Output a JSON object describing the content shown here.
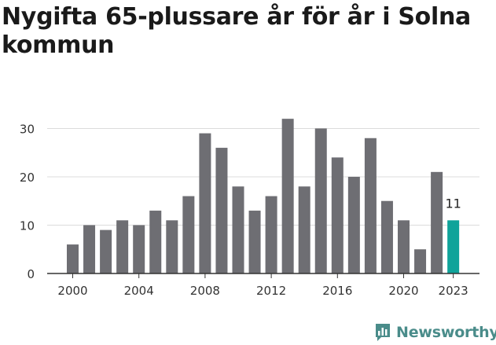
{
  "chart_data": {
    "type": "bar",
    "title": "Nygifta 65-plussare år för år i Solna kommun",
    "xlabel": "",
    "ylabel": "",
    "ylim": [
      0,
      33
    ],
    "yticks": [
      0,
      10,
      20,
      30
    ],
    "xticks": [
      "2000",
      "2004",
      "2008",
      "2012",
      "2016",
      "2020",
      "2023"
    ],
    "categories": [
      "2000",
      "2001",
      "2002",
      "2003",
      "2004",
      "2005",
      "2006",
      "2007",
      "2008",
      "2009",
      "2010",
      "2011",
      "2012",
      "2013",
      "2014",
      "2015",
      "2016",
      "2017",
      "2018",
      "2019",
      "2020",
      "2021",
      "2022",
      "2023"
    ],
    "values": [
      6,
      10,
      9,
      11,
      10,
      13,
      11,
      16,
      29,
      26,
      18,
      13,
      16,
      32,
      18,
      30,
      24,
      20,
      28,
      15,
      11,
      5,
      21,
      11
    ],
    "highlight": {
      "category": "2023",
      "label": "11"
    },
    "grid": true,
    "colors": {
      "bar": "#6e6e73",
      "highlight": "#0fa39a",
      "grid": "#dcdcdc",
      "axis": "#333333"
    }
  },
  "brand": {
    "name": "Newsworthy",
    "icon": "newsworthy-logo-icon",
    "color": "#4a8c8a"
  }
}
